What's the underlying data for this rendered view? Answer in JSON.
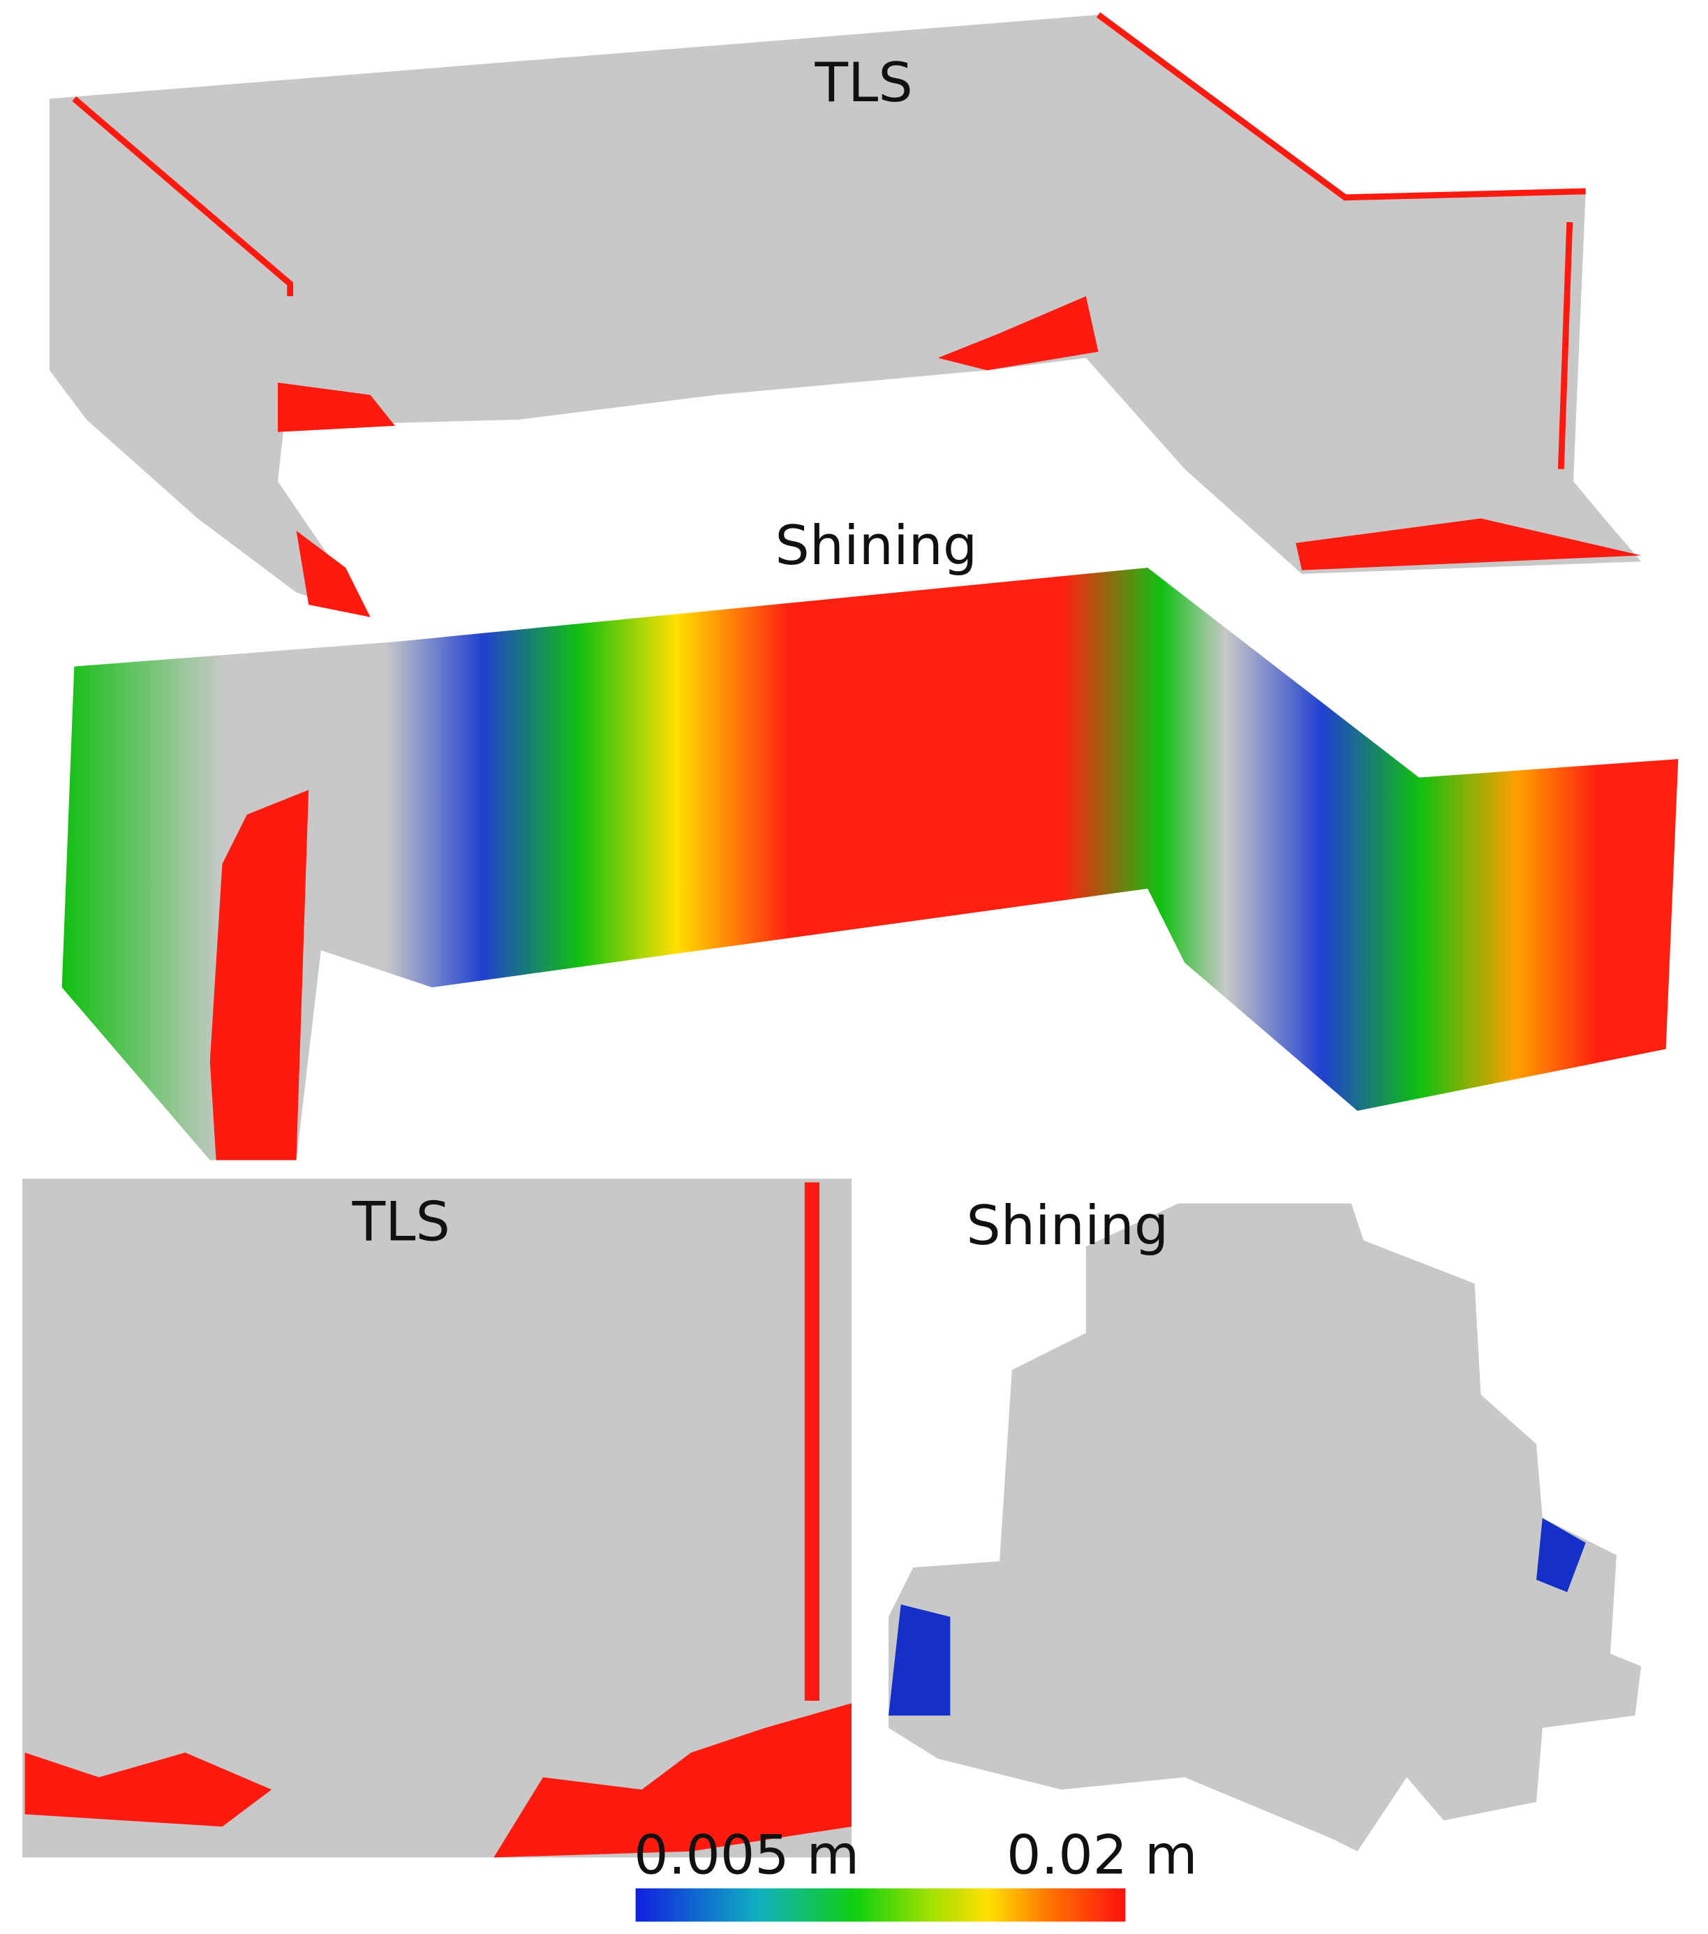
{
  "panels": [
    {
      "label": "TLS"
    },
    {
      "label": "Shining"
    },
    {
      "label": "TLS"
    },
    {
      "label": "Shining"
    }
  ],
  "colorbar": {
    "min_label": "0.005 m",
    "max_label": "0.02 m"
  }
}
